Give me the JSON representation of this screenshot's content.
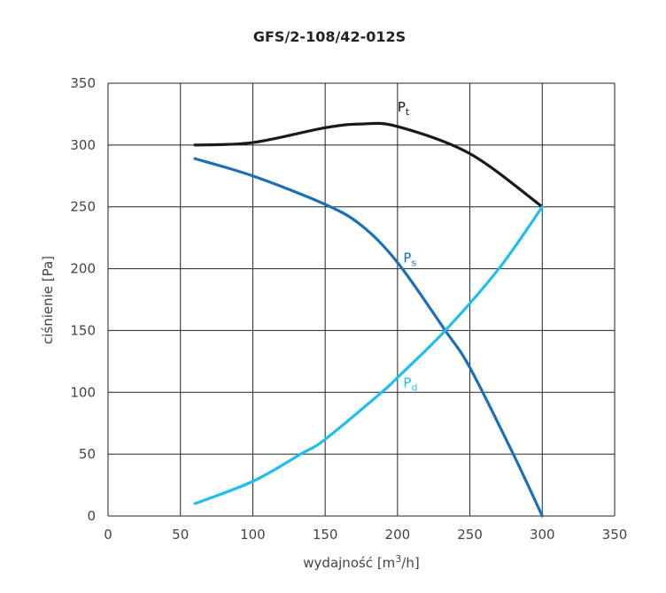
{
  "chart_data": {
    "type": "line",
    "title": "GFS/2-108/42-012S",
    "xlabel": "wydajność [m",
    "xlabel_sup": "3",
    "xlabel_end": "/h]",
    "ylabel": "ciśnienie [Pa]",
    "xlim": [
      0,
      350
    ],
    "ylim": [
      0,
      350
    ],
    "xticks": [
      "0",
      "50",
      "100",
      "150",
      "200",
      "250",
      "300",
      "350"
    ],
    "yticks": [
      "0",
      "50",
      "100",
      "150",
      "200",
      "250",
      "300",
      "350"
    ],
    "grid": true,
    "series": [
      {
        "name": "P",
        "sub": "t",
        "color": "#1a1a1a",
        "points": [
          [
            60,
            300
          ],
          [
            100,
            302
          ],
          [
            150,
            314
          ],
          [
            175,
            317
          ],
          [
            200,
            315
          ],
          [
            250,
            293
          ],
          [
            300,
            250
          ]
        ],
        "label_at": [
          200,
          327
        ]
      },
      {
        "name": "P",
        "sub": "s",
        "color": "#1a6fb5",
        "points": [
          [
            60,
            289
          ],
          [
            100,
            275
          ],
          [
            150,
            252
          ],
          [
            175,
            235
          ],
          [
            200,
            205
          ],
          [
            233,
            150
          ],
          [
            250,
            120
          ],
          [
            280,
            50
          ],
          [
            300,
            0
          ]
        ],
        "label_at": [
          204,
          205
        ]
      },
      {
        "name": "P",
        "sub": "d",
        "color": "#1ebef0",
        "points": [
          [
            60,
            10
          ],
          [
            100,
            28
          ],
          [
            133,
            50
          ],
          [
            150,
            62
          ],
          [
            189,
            100
          ],
          [
            200,
            112
          ],
          [
            233,
            150
          ],
          [
            270,
            200
          ],
          [
            300,
            250
          ]
        ],
        "label_at": [
          204,
          104
        ]
      }
    ]
  }
}
